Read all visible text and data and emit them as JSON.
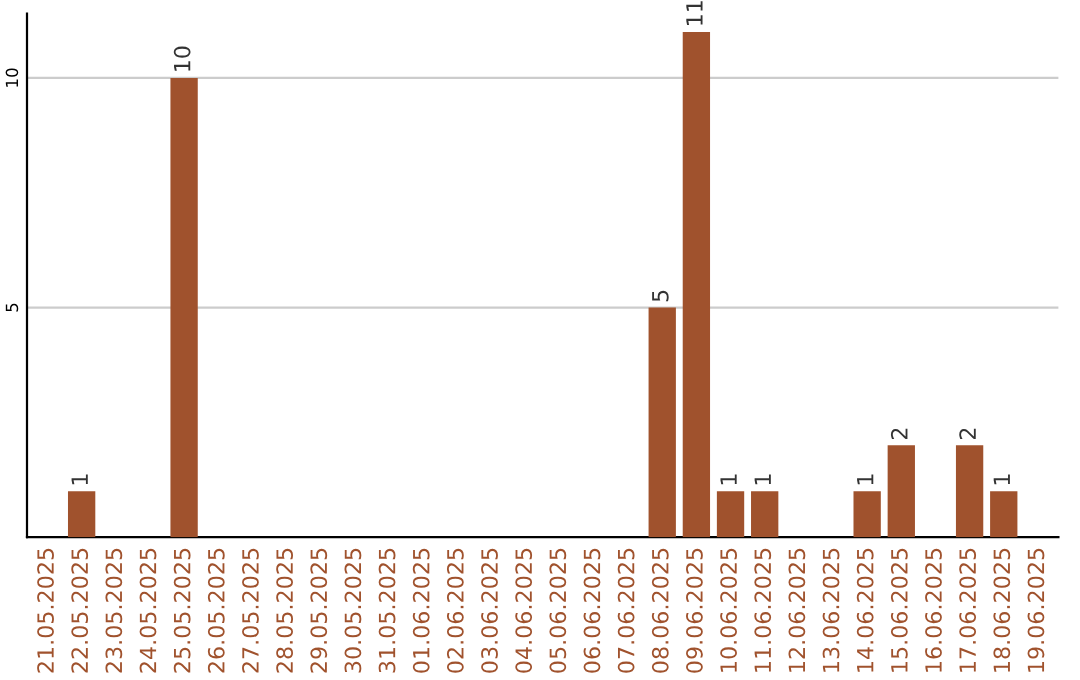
{
  "chart_data": {
    "type": "bar",
    "categories": [
      "21.05.2025",
      "22.05.2025",
      "23.05.2025",
      "24.05.2025",
      "25.05.2025",
      "26.05.2025",
      "27.05.2025",
      "28.05.2025",
      "29.05.2025",
      "30.05.2025",
      "31.05.2025",
      "01.06.2025",
      "02.06.2025",
      "03.06.2025",
      "04.06.2025",
      "05.06.2025",
      "06.06.2025",
      "07.06.2025",
      "08.06.2025",
      "09.06.2025",
      "10.06.2025",
      "11.06.2025",
      "12.06.2025",
      "13.06.2025",
      "14.06.2025",
      "15.06.2025",
      "16.06.2025",
      "17.06.2025",
      "18.06.2025",
      "19.06.2025"
    ],
    "values": [
      0,
      1,
      0,
      0,
      10,
      0,
      0,
      0,
      0,
      0,
      0,
      0,
      0,
      0,
      0,
      0,
      0,
      0,
      5,
      11,
      1,
      1,
      0,
      0,
      1,
      2,
      0,
      2,
      1,
      0
    ],
    "value_labels": [
      null,
      "1",
      null,
      null,
      "10",
      null,
      null,
      null,
      null,
      null,
      null,
      null,
      null,
      null,
      null,
      null,
      null,
      null,
      "5",
      "11",
      "1",
      "1",
      null,
      null,
      "1",
      "2",
      null,
      "2",
      "1",
      null
    ],
    "color": "#a0522d",
    "ylim": [
      0,
      11.4
    ],
    "yticks": [
      5,
      10
    ],
    "grid": "y",
    "legend": false
  }
}
